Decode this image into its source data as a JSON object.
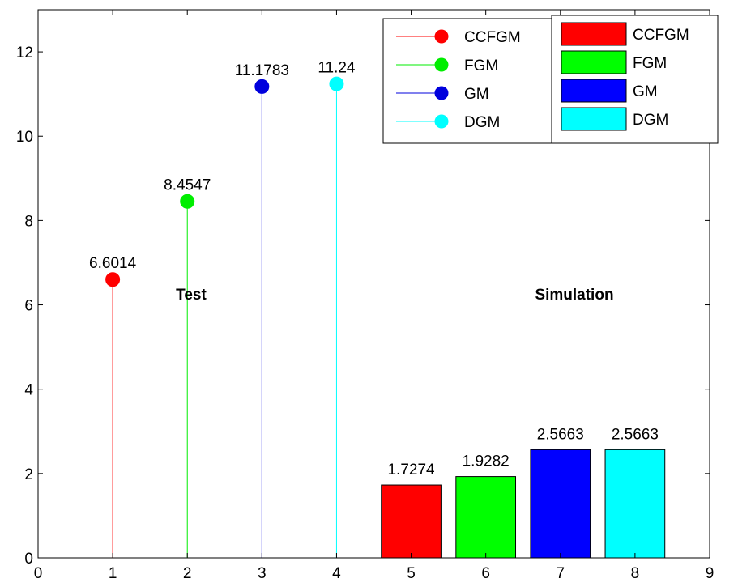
{
  "chart_data": {
    "type": "bar",
    "title": "",
    "xlabel": "",
    "ylabel": "",
    "xlim": [
      0,
      9
    ],
    "ylim": [
      0,
      13
    ],
    "x_ticks": [
      "0",
      "1",
      "2",
      "3",
      "4",
      "5",
      "6",
      "7",
      "8",
      "9"
    ],
    "y_ticks": [
      "0",
      "2",
      "4",
      "6",
      "8",
      "10",
      "12"
    ],
    "annotations": {
      "test": "Test",
      "simulation": "Simulation"
    },
    "stems": [
      {
        "name": "CCFGM",
        "x": 1,
        "value": 6.6014,
        "label": "6.6014",
        "color": "#ff0000"
      },
      {
        "name": "FGM",
        "x": 2,
        "value": 8.4547,
        "label": "8.4547",
        "color": "#00ee00"
      },
      {
        "name": "GM",
        "x": 3,
        "value": 11.1783,
        "label": "11.1783",
        "color": "#0000dd"
      },
      {
        "name": "DGM",
        "x": 4,
        "value": 11.24,
        "label": "11.24",
        "color": "#00ffff"
      }
    ],
    "bars": [
      {
        "name": "CCFGM",
        "x": 5,
        "value": 1.7274,
        "label": "1.7274",
        "color": "#ff0000"
      },
      {
        "name": "FGM",
        "x": 6,
        "value": 1.9282,
        "label": "1.9282",
        "color": "#00ff00"
      },
      {
        "name": "GM",
        "x": 7,
        "value": 2.5663,
        "label": "2.5663",
        "color": "#0000ff"
      },
      {
        "name": "DGM",
        "x": 8,
        "value": 2.5663,
        "label": "2.5663",
        "color": "#00ffff"
      }
    ],
    "legend_stem": {
      "placement": "top-right",
      "entries": [
        "CCFGM",
        "FGM",
        "GM",
        "DGM"
      ]
    },
    "legend_bar": {
      "placement": "top-right",
      "entries": [
        "CCFGM",
        "FGM",
        "GM",
        "DGM"
      ]
    }
  }
}
